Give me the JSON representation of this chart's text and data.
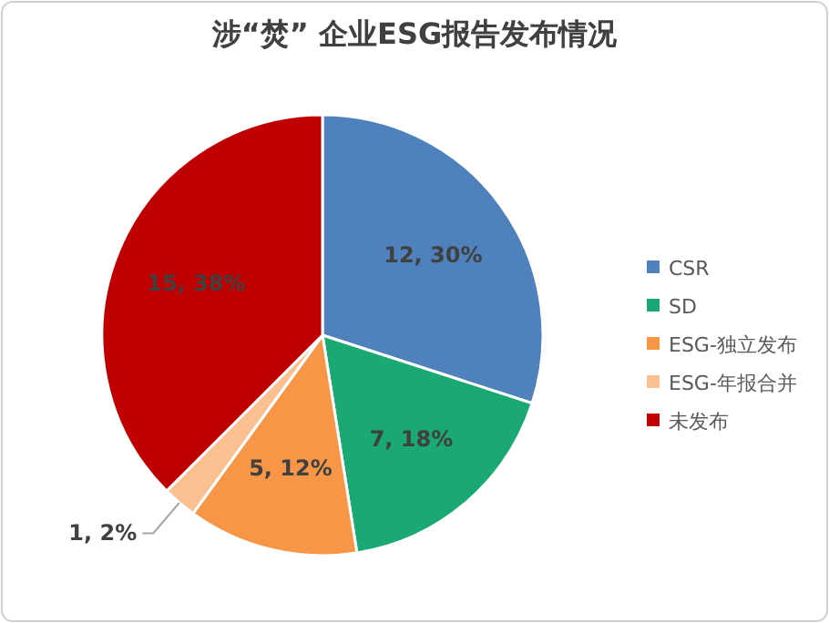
{
  "chart_data": {
    "type": "pie",
    "title": "涉“焚” 企业ESG报告发布情况",
    "categories": [
      "CSR",
      "SD",
      "ESG-独立发布",
      "ESG-年报合并",
      "未发布"
    ],
    "values": [
      12,
      7,
      5,
      1,
      15
    ],
    "value_labels": [
      "12, 30%",
      "7, 18%",
      "5, 12%",
      "1, 2%",
      "15, 38%"
    ],
    "colors": [
      "#4f81bd",
      "#1aa873",
      "#f79646",
      "#fac090",
      "#c00000"
    ],
    "legend": "right"
  }
}
